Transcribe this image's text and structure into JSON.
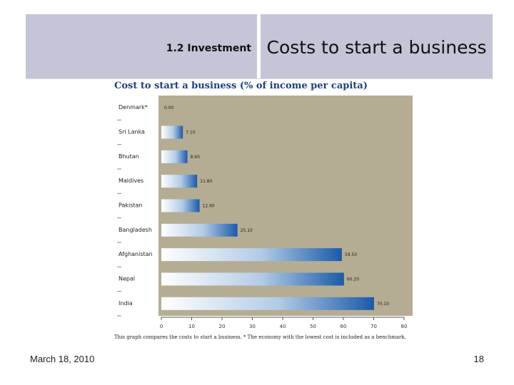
{
  "header": {
    "section_label": "1.2 Investment",
    "title": "Costs to start a business"
  },
  "footer": {
    "date": "March 18, 2010",
    "page_number": "18"
  },
  "chart_data": {
    "type": "bar",
    "orientation": "horizontal",
    "title": "Cost to start a business (% of income per capita)",
    "caption": "This graph compares the costs to start a business. * The economy with the lowest cost is included as a benchmark.",
    "categories": [
      "Denmark*",
      "Sri Lanka",
      "Bhutan",
      "Maldives",
      "Pakistan",
      "Bangladesh",
      "Afghanistan",
      "Nepal",
      "India"
    ],
    "values": [
      0.0,
      7.1,
      8.6,
      11.8,
      12.6,
      25.1,
      59.5,
      60.2,
      70.1
    ],
    "value_labels": [
      "0.00",
      "7.10",
      "8.60",
      "11.80",
      "12.60",
      "25.10",
      "59.50",
      "60.20",
      "70.10"
    ],
    "xlim": [
      0,
      80
    ],
    "xticks": [
      0,
      10,
      20,
      30,
      40,
      50,
      60,
      70,
      80
    ],
    "grid": false,
    "colors": {
      "plot_background": "#b5ad93",
      "bar_light": "#ffffff",
      "bar_dark": "#1a5aa8",
      "title": "#1f3f7f"
    }
  }
}
